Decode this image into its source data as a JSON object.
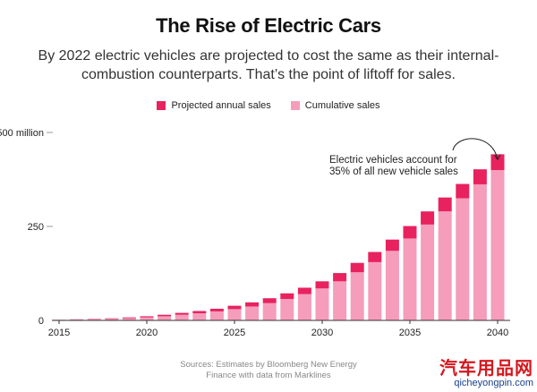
{
  "title": "The Rise of Electric Cars",
  "subtitle": "By 2022 electric vehicles are projected to cost the same as their internal-combustion counterparts. That’s the point of liftoff for sales.",
  "source_line1": "Sources: Estimates by Bloomberg New Energy",
  "source_line2": "Finance with data from Marklines",
  "watermark": {
    "name": "汽车用品网",
    "url": "qicheyongpin.com"
  },
  "colors": {
    "annual": "#e8225f",
    "cumulative": "#f59dbb",
    "axis": "#999999"
  },
  "chart_data": {
    "type": "bar",
    "stacked": true,
    "legend": [
      "Projected annual sales",
      "Cumulative sales"
    ],
    "legend_position": "top-center",
    "x": [
      2015,
      2016,
      2017,
      2018,
      2019,
      2020,
      2021,
      2022,
      2023,
      2024,
      2025,
      2026,
      2027,
      2028,
      2029,
      2030,
      2031,
      2032,
      2033,
      2034,
      2035,
      2036,
      2037,
      2038,
      2039,
      2040
    ],
    "x_ticks": [
      "2015",
      "2020",
      "2025",
      "2030",
      "2035",
      "2040"
    ],
    "y_ticks": [
      "500 million",
      "250",
      "0"
    ],
    "y_tick_values": [
      500,
      250,
      0
    ],
    "ylim": [
      0,
      500
    ],
    "series": [
      {
        "name": "Cumulative sales",
        "values": [
          1,
          2,
          3,
          4,
          6,
          8,
          11,
          15,
          19,
          24,
          30,
          37,
          46,
          57,
          70,
          85,
          104,
          128,
          155,
          185,
          218,
          255,
          290,
          325,
          362,
          400
        ]
      },
      {
        "name": "Projected annual sales",
        "values": [
          0.5,
          0.8,
          1,
          1.5,
          2,
          3,
          4,
          5,
          6,
          7,
          9,
          11,
          13,
          15,
          17,
          19,
          22,
          25,
          27,
          30,
          33,
          35,
          37,
          38,
          40,
          42
        ]
      }
    ],
    "annotation": {
      "text_line1": "Electric vehicles account for",
      "text_line2": "35% of all new vehicle sales",
      "target_x": 2040
    },
    "grid": false
  }
}
